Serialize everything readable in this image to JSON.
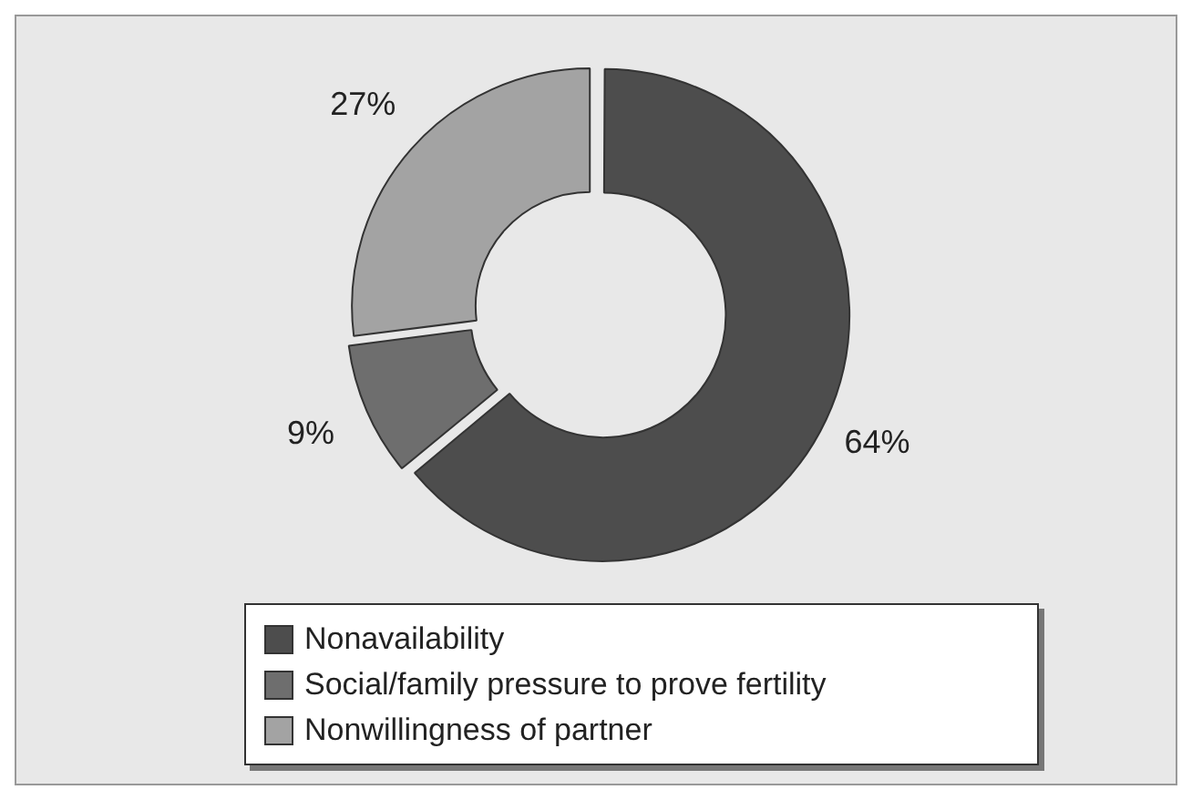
{
  "chart_data": {
    "type": "donut",
    "categories": [
      "Nonavailability",
      "Social/family pressure to prove fertility",
      "Nonwillingness of partner"
    ],
    "values": [
      64,
      9,
      27
    ],
    "colors": [
      "#4d4d4d",
      "#6e6e6e",
      "#a3a3a3"
    ],
    "value_labels": [
      "64%",
      "9%",
      "27%"
    ],
    "legend": "bottom"
  }
}
